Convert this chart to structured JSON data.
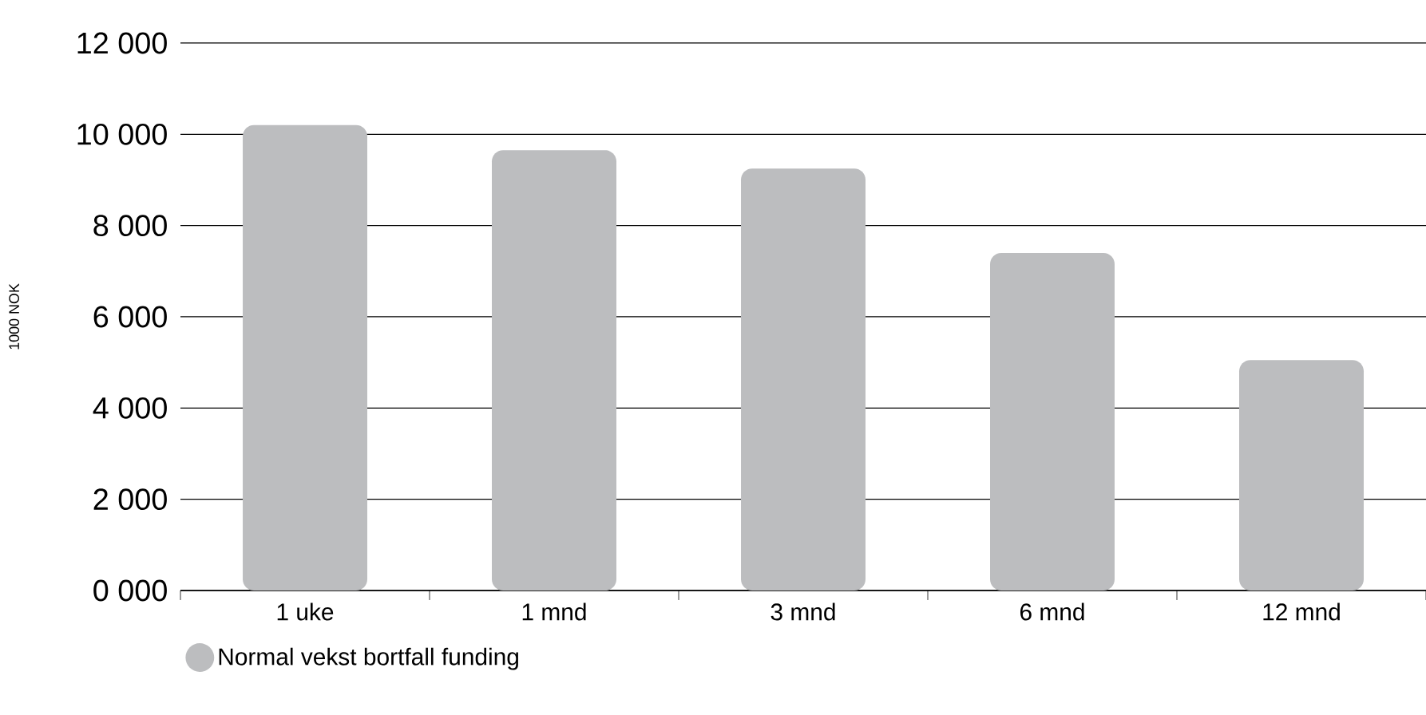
{
  "chart_data": {
    "type": "bar",
    "ylabel": "1000 NOK",
    "categories": [
      "1 uke",
      "1 mnd",
      "3 mnd",
      "6 mnd",
      "12 mnd"
    ],
    "series": [
      {
        "name": "Normal vekst bortfall funding",
        "color": "#bcbdbf",
        "values": [
          10200,
          9650,
          9250,
          7400,
          5050
        ]
      }
    ],
    "ylim": [
      0,
      12000
    ],
    "yticks": [
      {
        "value": 0,
        "label": "0 000"
      },
      {
        "value": 2000,
        "label": "2 000"
      },
      {
        "value": 4000,
        "label": "4 000"
      },
      {
        "value": 6000,
        "label": "6 000"
      },
      {
        "value": 8000,
        "label": "8 000"
      },
      {
        "value": 10000,
        "label": "10 000"
      },
      {
        "value": 12000,
        "label": "12 000"
      }
    ],
    "grid": "y",
    "legend": "bottom left"
  }
}
